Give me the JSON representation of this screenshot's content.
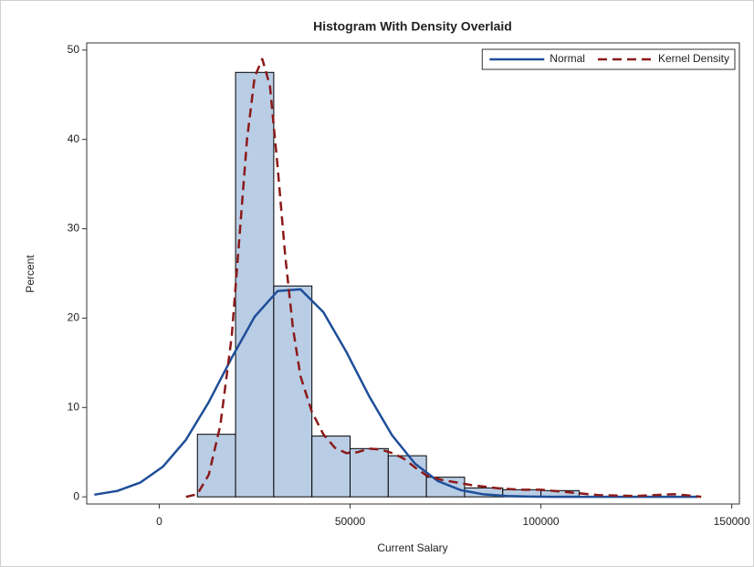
{
  "chart_data": {
    "type": "histogram",
    "title": "Histogram With Density Overlaid",
    "xlabel": "Current Salary",
    "ylabel": "Percent",
    "bins": [
      10000,
      20000,
      30000,
      40000,
      50000,
      60000,
      70000,
      80000,
      90000,
      100000,
      110000
    ],
    "values": [
      7,
      47.5,
      23.6,
      6.8,
      5.4,
      4.6,
      2.2,
      1.0,
      0.8,
      0.7
    ],
    "color": "#b9cde5",
    "xlim": [
      -19000,
      152000
    ],
    "ylim": [
      -0.8,
      50.8
    ],
    "xticks": [
      0,
      50000,
      100000,
      150000
    ],
    "yticks": [
      0,
      10,
      20,
      30,
      40,
      50
    ],
    "legend": "upper right",
    "series": [
      {
        "name": "Normal",
        "color": "#1f4e99",
        "dash": "solid",
        "x": [
          -17000,
          -11000,
          -5000,
          1000,
          7000,
          13000,
          19000,
          25000,
          31000,
          37000,
          43000,
          49000,
          55000,
          61000,
          67000,
          73000,
          79000,
          85000,
          91000,
          97000,
          103000,
          115000,
          141000
        ],
        "values": [
          0.24,
          0.66,
          1.59,
          3.39,
          6.39,
          10.62,
          15.57,
          20.16,
          23.03,
          23.23,
          20.67,
          16.24,
          11.26,
          6.89,
          3.72,
          1.77,
          0.75,
          0.28,
          0.09,
          0.03,
          0.01,
          0,
          0
        ]
      },
      {
        "name": "Kernel Density",
        "color": "#8b1a1a",
        "dash": "dashed",
        "x": [
          7000,
          10000,
          13000,
          16000,
          19000,
          21000,
          23000,
          25000,
          27000,
          29000,
          31000,
          33000,
          35000,
          37000,
          40000,
          43000,
          46000,
          49000,
          52000,
          55000,
          58000,
          61000,
          64000,
          67000,
          70000,
          74000,
          78000,
          82000,
          86000,
          90000,
          95000,
          100000,
          105000,
          110000,
          115000,
          120000,
          125000,
          130000,
          135000,
          140000,
          142000
        ],
        "values": [
          0,
          0.3,
          2.5,
          8,
          18,
          29,
          40,
          47,
          49,
          46,
          37,
          27,
          19,
          13.5,
          9.5,
          7,
          5.5,
          4.9,
          5,
          5.4,
          5.3,
          4.9,
          4.3,
          3.3,
          2.4,
          1.9,
          1.6,
          1.3,
          1.1,
          0.9,
          0.8,
          0.8,
          0.6,
          0.4,
          0.2,
          0.15,
          0.1,
          0.2,
          0.3,
          0.1,
          0
        ]
      }
    ]
  }
}
